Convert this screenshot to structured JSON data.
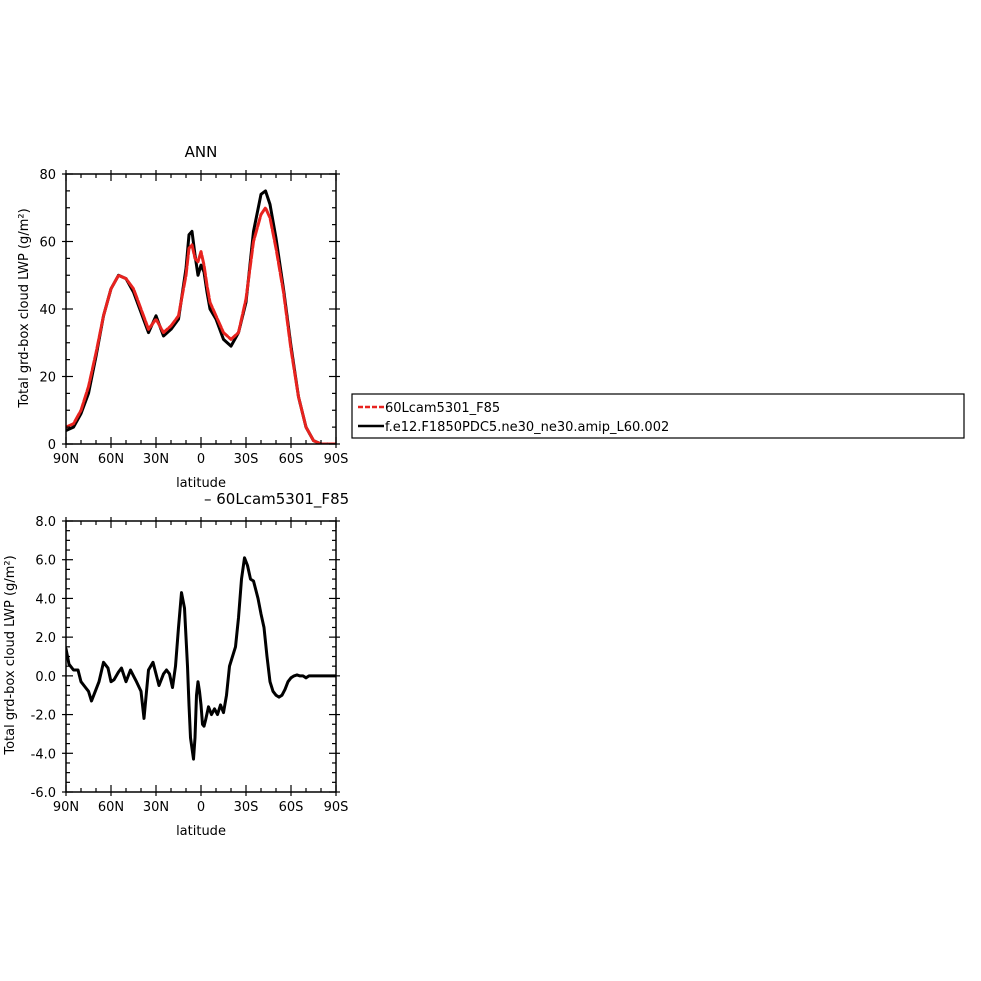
{
  "colors": {
    "series_1": "#e8231f",
    "series_2": "#000000",
    "background": "#ffffff"
  },
  "legend": {
    "entries": [
      "60Lcam5301_F85",
      "f.e12.F1850PDC5.ne30_ne30.amip_L60.002"
    ],
    "placement": "right"
  },
  "chart_data": [
    {
      "type": "line",
      "title": "ANN",
      "xlabel": "latitude",
      "ylabel": "Total grd-box cloud LWP (g/m²)",
      "xlim": [
        -90,
        90
      ],
      "ylim": [
        0,
        80
      ],
      "x_ticks": [
        -90,
        -60,
        -30,
        0,
        30,
        60,
        90
      ],
      "x_tick_labels": [
        "90N",
        "60N",
        "30N",
        "0",
        "30S",
        "60S",
        "90S"
      ],
      "y_ticks": [
        0,
        20,
        40,
        60,
        80
      ],
      "y_tick_labels": [
        "0",
        "20",
        "40",
        "60",
        "80"
      ],
      "grid": false,
      "x": [
        -90,
        -85,
        -80,
        -75,
        -70,
        -65,
        -60,
        -55,
        -50,
        -45,
        -40,
        -35,
        -30,
        -25,
        -20,
        -15,
        -10,
        -8,
        -6,
        -4,
        -2,
        0,
        2,
        4,
        6,
        10,
        15,
        20,
        25,
        30,
        35,
        40,
        43,
        46,
        50,
        55,
        60,
        65,
        70,
        75,
        80,
        85,
        90
      ],
      "series": [
        {
          "name": "60Lcam5301_F85",
          "color": "#e8231f",
          "values": [
            5,
            6,
            10,
            17,
            27,
            38,
            46,
            50,
            49,
            46,
            40,
            34,
            37,
            33,
            35,
            38,
            50,
            58,
            59,
            55,
            54,
            57,
            53,
            47,
            42,
            38,
            33,
            31,
            33,
            43,
            60,
            68,
            70,
            67,
            58,
            45,
            28,
            14,
            5,
            1,
            0,
            0,
            0
          ]
        },
        {
          "name": "f.e12.F1850PDC5.ne30_ne30.amip_L60.002",
          "color": "#000000",
          "values": [
            4,
            5,
            9,
            15,
            26,
            38,
            46,
            50,
            49,
            45,
            39,
            33,
            38,
            32,
            34,
            37,
            52,
            62,
            63,
            56,
            50,
            53,
            51,
            45,
            40,
            37,
            31,
            29,
            33,
            42,
            63,
            74,
            75,
            71,
            61,
            46,
            29,
            14,
            5,
            1,
            0,
            0,
            0
          ]
        }
      ]
    },
    {
      "type": "line",
      "title": "– 60Lcam5301_F85",
      "xlabel": "latitude",
      "ylabel": "Total grd-box cloud LWP (g/m²)",
      "xlim": [
        -90,
        90
      ],
      "ylim": [
        -6,
        8
      ],
      "x_ticks": [
        -90,
        -60,
        -30,
        0,
        30,
        60,
        90
      ],
      "x_tick_labels": [
        "90N",
        "60N",
        "30N",
        "0",
        "30S",
        "60S",
        "90S"
      ],
      "y_ticks": [
        -6,
        -4,
        -2,
        0,
        2,
        4,
        6,
        8
      ],
      "y_tick_labels": [
        "-6.0",
        "-4.0",
        "-2.0",
        "0.0",
        "2.0",
        "4.0",
        "6.0",
        "8.0"
      ],
      "grid": false,
      "x": [
        -90,
        -88,
        -85,
        -82,
        -80,
        -77,
        -75,
        -73,
        -70,
        -68,
        -65,
        -62,
        -60,
        -58,
        -55,
        -53,
        -50,
        -47,
        -45,
        -43,
        -40,
        -38,
        -35,
        -32,
        -30,
        -28,
        -25,
        -23,
        -21,
        -19,
        -17,
        -15,
        -13,
        -11,
        -9,
        -8,
        -7,
        -5,
        -4,
        -3,
        -2,
        -1,
        0,
        1,
        2,
        3,
        5,
        7,
        9,
        11,
        13,
        15,
        17,
        19,
        21,
        23,
        25,
        27,
        29,
        31,
        33,
        35,
        38,
        40,
        42,
        44,
        46,
        48,
        50,
        52,
        54,
        56,
        58,
        60,
        62,
        64,
        66,
        68,
        70,
        72,
        75,
        78,
        80,
        83,
        85,
        88,
        90
      ],
      "series": [
        {
          "name": "",
          "color": "#000000",
          "values": [
            1.4,
            0.6,
            0.3,
            0.3,
            -0.3,
            -0.6,
            -0.8,
            -1.3,
            -0.7,
            -0.3,
            0.7,
            0.4,
            -0.3,
            -0.2,
            0.2,
            0.4,
            -0.3,
            0.3,
            0.0,
            -0.3,
            -0.8,
            -2.2,
            0.3,
            0.7,
            0.1,
            -0.5,
            0.1,
            0.3,
            0.1,
            -0.6,
            0.5,
            2.5,
            4.3,
            3.5,
            0.5,
            -1.5,
            -3.2,
            -4.3,
            -3.2,
            -1.0,
            -0.3,
            -0.8,
            -1.5,
            -2.5,
            -2.6,
            -2.3,
            -1.6,
            -2.0,
            -1.7,
            -2.0,
            -1.5,
            -1.9,
            -1.0,
            0.5,
            1.0,
            1.5,
            3.0,
            5.0,
            6.1,
            5.7,
            5.0,
            4.9,
            4.0,
            3.2,
            2.5,
            1.0,
            -0.3,
            -0.8,
            -1.0,
            -1.1,
            -1.0,
            -0.7,
            -0.3,
            -0.1,
            0.0,
            0.05,
            0.0,
            0.0,
            -0.1,
            0.0,
            0.0,
            0.0,
            0.0,
            0.0,
            0.0,
            0.0,
            0.0
          ]
        }
      ]
    }
  ]
}
